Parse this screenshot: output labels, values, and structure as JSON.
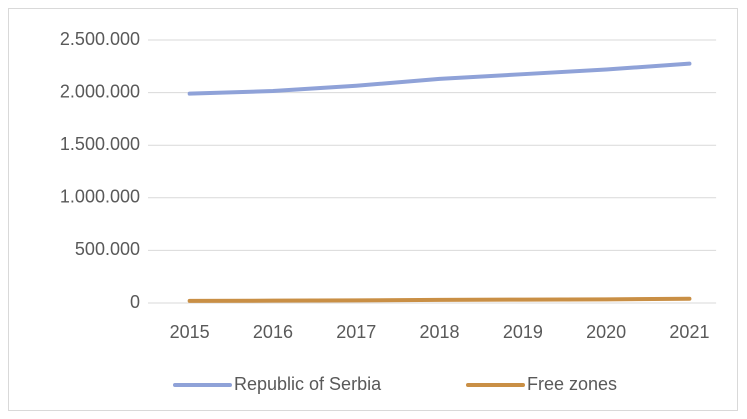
{
  "chart_data": {
    "type": "line",
    "categories": [
      "2015",
      "2016",
      "2017",
      "2018",
      "2019",
      "2020",
      "2021"
    ],
    "series": [
      {
        "name": "Republic of Serbia",
        "color": "#8fa2d8",
        "values": [
          1990000,
          2015000,
          2065000,
          2130000,
          2175000,
          2220000,
          2275000
        ]
      },
      {
        "name": "Free zones",
        "color": "#c98f45",
        "values": [
          20000,
          22000,
          25000,
          30000,
          32000,
          35000,
          40000
        ]
      }
    ],
    "ylim": [
      0,
      2500000
    ],
    "yticks": [
      0,
      {
        "value": 500000,
        "label": "500.000"
      },
      {
        "value": 1000000,
        "label": "1.000.000"
      },
      {
        "value": 1500000,
        "label": "1.500.000"
      },
      {
        "value": 2000000,
        "label": "2.000.000"
      },
      {
        "value": 2500000,
        "label": "2.500.000"
      }
    ],
    "grid": true,
    "legend": "bottom"
  }
}
